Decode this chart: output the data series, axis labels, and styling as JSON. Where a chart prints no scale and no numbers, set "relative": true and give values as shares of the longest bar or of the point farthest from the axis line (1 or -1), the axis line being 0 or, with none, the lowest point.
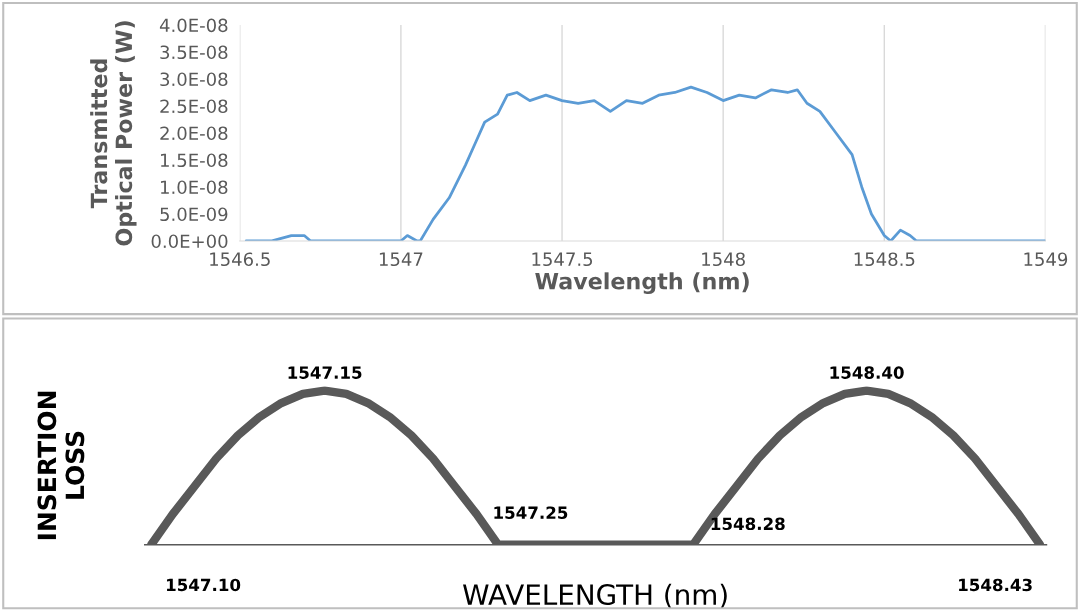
{
  "chart_data": [
    {
      "type": "line",
      "xlabel": "Wavelength (nm)",
      "ylabel": "Transmitted\nOptical Power (W)",
      "grid": "x",
      "legend": false,
      "marker": "none",
      "line_style": "solid",
      "xlim": [
        1546.5,
        1549
      ],
      "xticks": [
        1546.5,
        1547,
        1547.5,
        1548,
        1548.5,
        1549
      ],
      "ylim": [
        0,
        4e-08
      ],
      "yticks": [
        {
          "value": 0,
          "label": "0.0E+00"
        },
        {
          "value": 5e-09,
          "label": "5.0E-09"
        },
        {
          "value": 1e-08,
          "label": "1.0E-08"
        },
        {
          "value": 1.5e-08,
          "label": "1.5E-08"
        },
        {
          "value": 2e-08,
          "label": "2.0E-08"
        },
        {
          "value": 2.5e-08,
          "label": "2.5E-08"
        },
        {
          "value": 3e-08,
          "label": "3.0E-08"
        },
        {
          "value": 3.5e-08,
          "label": "3.5E-08"
        },
        {
          "value": 4e-08,
          "label": "4.0E-08"
        }
      ],
      "series": [
        {
          "color": "#5b9bd5",
          "x": [
            1546.52,
            1546.6,
            1546.66,
            1546.7,
            1546.72,
            1546.9,
            1546.95,
            1547.0,
            1547.02,
            1547.05,
            1547.06,
            1547.1,
            1547.15,
            1547.2,
            1547.23,
            1547.26,
            1547.3,
            1547.33,
            1547.36,
            1547.4,
            1547.45,
            1547.5,
            1547.55,
            1547.6,
            1547.65,
            1547.7,
            1547.75,
            1547.8,
            1547.85,
            1547.9,
            1547.95,
            1548.0,
            1548.05,
            1548.1,
            1548.15,
            1548.2,
            1548.23,
            1548.26,
            1548.3,
            1548.35,
            1548.4,
            1548.43,
            1548.46,
            1548.5,
            1548.52,
            1548.55,
            1548.58,
            1548.6,
            1549.0
          ],
          "values": [
            0,
            0,
            1e-09,
            1e-09,
            0,
            0,
            0,
            0,
            1e-09,
            0,
            0,
            4e-09,
            8e-09,
            1.4e-08,
            1.8e-08,
            2.2e-08,
            2.35e-08,
            2.7e-08,
            2.75e-08,
            2.6e-08,
            2.7e-08,
            2.6e-08,
            2.55e-08,
            2.6e-08,
            2.4e-08,
            2.6e-08,
            2.55e-08,
            2.7e-08,
            2.75e-08,
            2.85e-08,
            2.75e-08,
            2.6e-08,
            2.7e-08,
            2.65e-08,
            2.8e-08,
            2.75e-08,
            2.8e-08,
            2.55e-08,
            2.4e-08,
            2e-08,
            1.6e-08,
            1e-08,
            5e-09,
            1e-09,
            0,
            2e-09,
            1e-09,
            0,
            0
          ]
        }
      ]
    },
    {
      "type": "line",
      "relative": true,
      "xlabel": "WAVELENGTH (nm)",
      "ylabel": "INSERTION\nLOSS",
      "legend": false,
      "marker": "none",
      "line_style": "solid",
      "categories": [
        null,
        null,
        null,
        null,
        null,
        null,
        null,
        null,
        null,
        null,
        null,
        null,
        null,
        null,
        null,
        null,
        null,
        null,
        null,
        null,
        null,
        null,
        null,
        null,
        null,
        null,
        null,
        null,
        null,
        null,
        null,
        null,
        null,
        null,
        null,
        null,
        null,
        null,
        null,
        null,
        null,
        null
      ],
      "annotations": [
        "1547.10",
        "1547.15",
        "1547.25",
        "1548.28",
        "1548.40",
        "1548.43"
      ],
      "series": [
        {
          "color": "#595959",
          "values": [
            0,
            0.2,
            0.38,
            0.56,
            0.71,
            0.83,
            0.92,
            0.98,
            1,
            0.98,
            0.92,
            0.83,
            0.71,
            0.56,
            0.38,
            0.2,
            0,
            0,
            0,
            0,
            0,
            0,
            0,
            0,
            0,
            0,
            0.2,
            0.38,
            0.56,
            0.71,
            0.83,
            0.92,
            0.98,
            1,
            0.98,
            0.92,
            0.83,
            0.71,
            0.56,
            0.38,
            0.2,
            0
          ]
        }
      ]
    }
  ]
}
